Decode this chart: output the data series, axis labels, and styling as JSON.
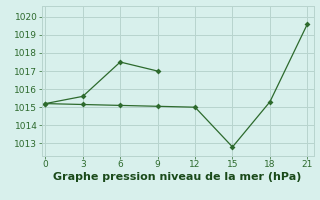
{
  "line1_x": [
    0,
    3,
    6,
    9
  ],
  "line1_y": [
    1015.2,
    1015.6,
    1017.5,
    1017.0
  ],
  "line2_x": [
    0,
    3,
    6,
    9,
    12,
    15,
    18,
    21
  ],
  "line2_y": [
    1015.2,
    1015.15,
    1015.1,
    1015.05,
    1015.0,
    1012.8,
    1015.3,
    1019.6
  ],
  "line_color": "#2d6a2d",
  "bg_color": "#d8f0ec",
  "grid_color": "#b8d4ce",
  "xlabel": "Graphe pression niveau de la mer (hPa)",
  "xlabel_color": "#1a4a1a",
  "xticks": [
    0,
    3,
    6,
    9,
    12,
    15,
    18,
    21
  ],
  "yticks": [
    1013,
    1014,
    1015,
    1016,
    1017,
    1018,
    1019,
    1020
  ],
  "xlim": [
    -0.3,
    21.5
  ],
  "ylim": [
    1012.3,
    1020.6
  ],
  "tick_fontsize": 6.5,
  "xlabel_fontsize": 8,
  "marker_size": 3
}
